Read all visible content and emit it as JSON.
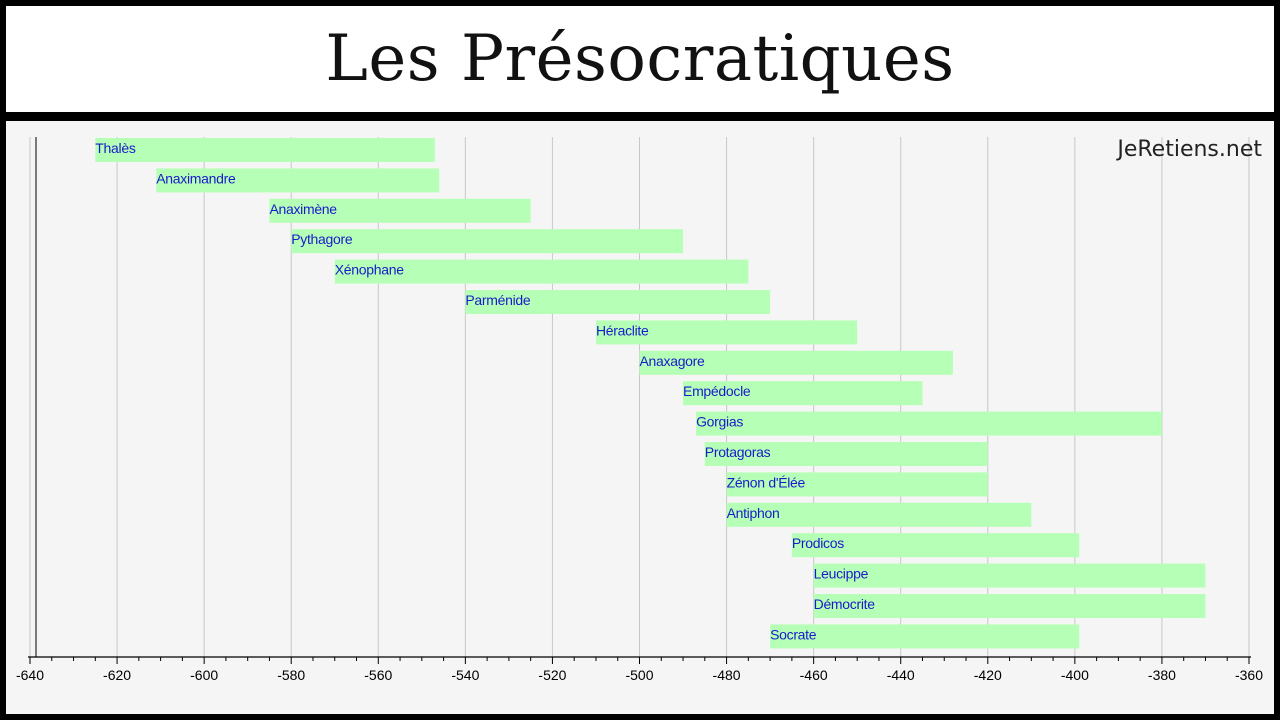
{
  "header": {
    "title": "Les Présocratiques"
  },
  "watermark": "JeRetiens.net",
  "colors": {
    "bar_fill": "#b6ffb6",
    "bar_label": "#1a1acc",
    "grid": "#c8c8c8",
    "axis": "#000000",
    "panel_bg": "#f5f5f5"
  },
  "chart_data": {
    "type": "bar",
    "orientation": "horizontal-timeline",
    "title": "",
    "xlabel": "",
    "ylabel": "",
    "xlim": [
      -640,
      -360
    ],
    "x_ticks": [
      -640,
      -620,
      -600,
      -580,
      -560,
      -540,
      -520,
      -500,
      -480,
      -460,
      -440,
      -420,
      -400,
      -380,
      -360
    ],
    "grid": true,
    "legend": "none",
    "bars": [
      {
        "label": "Thalès",
        "start": -625,
        "end": -547
      },
      {
        "label": "Anaximandre",
        "start": -611,
        "end": -546
      },
      {
        "label": "Anaximène",
        "start": -585,
        "end": -525
      },
      {
        "label": "Pythagore",
        "start": -580,
        "end": -490
      },
      {
        "label": "Xénophane",
        "start": -570,
        "end": -475
      },
      {
        "label": "Parménide",
        "start": -540,
        "end": -470
      },
      {
        "label": "Héraclite",
        "start": -510,
        "end": -450
      },
      {
        "label": "Anaxagore",
        "start": -500,
        "end": -428
      },
      {
        "label": "Empédocle",
        "start": -490,
        "end": -435
      },
      {
        "label": "Gorgias",
        "start": -487,
        "end": -380
      },
      {
        "label": "Protagoras",
        "start": -485,
        "end": -420
      },
      {
        "label": "Zénon d'Élée",
        "start": -480,
        "end": -420
      },
      {
        "label": "Antiphon",
        "start": -480,
        "end": -410
      },
      {
        "label": "Prodicos",
        "start": -465,
        "end": -399
      },
      {
        "label": "Leucippe",
        "start": -460,
        "end": -370
      },
      {
        "label": "Démocrite",
        "start": -460,
        "end": -370
      },
      {
        "label": "Socrate",
        "start": -470,
        "end": -399
      }
    ]
  }
}
